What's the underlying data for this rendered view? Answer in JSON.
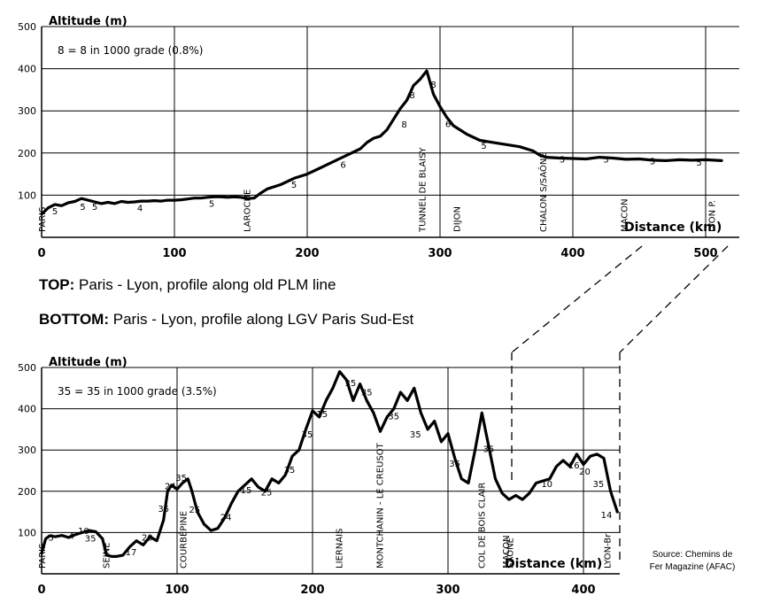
{
  "chart_data": [
    {
      "type": "line",
      "ylabel": "Altitude (m)",
      "xlabel": "Distance (km)",
      "note": "8 = 8 in 1000 grade (0.8%)",
      "xlim": [
        0,
        512
      ],
      "ylim": [
        0,
        500
      ],
      "x_ticks": [
        "0",
        "100",
        "200",
        "300",
        "400",
        "500"
      ],
      "y_ticks": [
        "100",
        "200",
        "300",
        "400",
        "500"
      ],
      "grid": true,
      "series": [
        {
          "x": [
            0,
            5,
            10,
            15,
            20,
            25,
            30,
            35,
            40,
            45,
            50,
            55,
            60,
            65,
            70,
            75,
            80,
            85,
            90,
            95,
            100,
            105,
            110,
            115,
            120,
            125,
            130,
            135,
            140,
            145,
            150,
            155,
            160,
            165,
            170,
            180,
            190,
            200,
            210,
            220,
            230,
            240,
            245,
            250,
            255,
            260,
            265,
            270,
            275,
            280,
            285,
            290,
            295,
            300,
            305,
            310,
            315,
            320,
            330,
            340,
            350,
            360,
            370,
            375,
            380,
            390,
            400,
            410,
            420,
            430,
            440,
            450,
            460,
            470,
            480,
            490,
            500,
            512
          ],
          "y": [
            55,
            70,
            78,
            75,
            82,
            85,
            92,
            88,
            84,
            80,
            83,
            80,
            85,
            83,
            84,
            86,
            86,
            87,
            86,
            88,
            88,
            89,
            91,
            93,
            93,
            95,
            96,
            96,
            95,
            96,
            95,
            92,
            93,
            105,
            115,
            125,
            140,
            150,
            165,
            180,
            195,
            210,
            225,
            235,
            240,
            255,
            280,
            305,
            325,
            360,
            375,
            395,
            340,
            310,
            285,
            265,
            255,
            245,
            230,
            225,
            220,
            215,
            205,
            195,
            190,
            188,
            187,
            186,
            190,
            188,
            185,
            186,
            183,
            182,
            184,
            183,
            184,
            182
          ]
        }
      ],
      "annotations": [
        {
          "label": "PARIS",
          "x": 0
        },
        {
          "label": "LAROCHE",
          "x": 157
        },
        {
          "label": "TUNNEL DE BLAISY",
          "x": 289
        },
        {
          "label": "DIJON",
          "x": 315
        },
        {
          "label": "CHALON S/SAÔNE",
          "x": 380
        },
        {
          "label": "MACON",
          "x": 441
        },
        {
          "label": "LYON P.",
          "x": 507
        }
      ],
      "grade_labels": [
        {
          "label": "5",
          "x": 10,
          "y": 55
        },
        {
          "label": "5",
          "x": 31,
          "y": 65
        },
        {
          "label": "5",
          "x": 40,
          "y": 65
        },
        {
          "label": "4",
          "x": 74,
          "y": 62
        },
        {
          "label": "5",
          "x": 128,
          "y": 72
        },
        {
          "label": "5",
          "x": 190,
          "y": 118
        },
        {
          "label": "6",
          "x": 227,
          "y": 165
        },
        {
          "label": "8",
          "x": 273,
          "y": 260
        },
        {
          "label": "8",
          "x": 279,
          "y": 330
        },
        {
          "label": "8",
          "x": 295,
          "y": 355
        },
        {
          "label": "6",
          "x": 306,
          "y": 262
        },
        {
          "label": "5",
          "x": 333,
          "y": 210
        },
        {
          "label": "5",
          "x": 392,
          "y": 178
        },
        {
          "label": "5",
          "x": 425,
          "y": 178
        },
        {
          "label": "5",
          "x": 460,
          "y": 173
        },
        {
          "label": "5",
          "x": 495,
          "y": 170
        }
      ]
    },
    {
      "type": "line",
      "ylabel": "Altitude (m)",
      "xlabel": "Distance (km)",
      "note": "35 = 35 in 1000 grade (3.5%)",
      "xlim": [
        0,
        425
      ],
      "ylim": [
        0,
        500
      ],
      "x_ticks": [
        "0",
        "100",
        "200",
        "300",
        "400"
      ],
      "y_ticks": [
        "100",
        "200",
        "300",
        "400",
        "500"
      ],
      "grid": true,
      "series": [
        {
          "x": [
            0,
            3,
            6,
            10,
            15,
            20,
            25,
            30,
            35,
            40,
            45,
            48,
            52,
            55,
            60,
            65,
            70,
            75,
            80,
            85,
            90,
            93,
            96,
            100,
            104,
            108,
            111,
            115,
            120,
            125,
            130,
            135,
            140,
            145,
            150,
            155,
            160,
            165,
            170,
            175,
            180,
            185,
            190,
            195,
            200,
            205,
            210,
            215,
            220,
            225,
            230,
            235,
            240,
            245,
            250,
            255,
            260,
            265,
            270,
            275,
            280,
            285,
            290,
            295,
            300,
            305,
            310,
            315,
            320,
            325,
            330,
            335,
            340,
            345,
            350,
            355,
            360,
            365,
            370,
            375,
            380,
            385,
            390,
            395,
            400,
            405,
            410,
            415,
            420,
            425
          ],
          "y": [
            50,
            85,
            92,
            90,
            93,
            88,
            95,
            100,
            105,
            102,
            85,
            45,
            42,
            42,
            45,
            65,
            80,
            70,
            90,
            80,
            130,
            200,
            215,
            205,
            220,
            230,
            200,
            150,
            120,
            105,
            110,
            135,
            170,
            200,
            215,
            230,
            210,
            200,
            230,
            220,
            240,
            285,
            300,
            350,
            395,
            380,
            420,
            450,
            490,
            470,
            420,
            460,
            420,
            390,
            345,
            380,
            400,
            440,
            420,
            450,
            390,
            350,
            370,
            320,
            340,
            280,
            230,
            220,
            300,
            390,
            310,
            230,
            195,
            180,
            190,
            180,
            195,
            220,
            225,
            230,
            260,
            275,
            260,
            290,
            265,
            285,
            290,
            280,
            200,
            150
          ]
        }
      ],
      "annotations": [
        {
          "label": "PARIS",
          "x": 0
        },
        {
          "label": "SEINE",
          "x": 50
        },
        {
          "label": "COURBÉPINE",
          "x": 107
        },
        {
          "label": "LIERNAIS",
          "x": 222
        },
        {
          "label": "MONTCHANIN - LE CREUSOT",
          "x": 252
        },
        {
          "label": "COL DE BOIS CLAIR",
          "x": 327
        },
        {
          "label": "SAÔNE",
          "x": 348
        },
        {
          "label": "MACON",
          "x": 345
        },
        {
          "label": "LYON-Br",
          "x": 420
        }
      ],
      "grade_labels": [
        {
          "label": "5",
          "x": 7,
          "y": 80
        },
        {
          "label": "4",
          "x": 22,
          "y": 85
        },
        {
          "label": "10",
          "x": 31,
          "y": 97
        },
        {
          "label": "35",
          "x": 36,
          "y": 78
        },
        {
          "label": "17",
          "x": 66,
          "y": 45
        },
        {
          "label": "20",
          "x": 78,
          "y": 80
        },
        {
          "label": "35",
          "x": 90,
          "y": 150
        },
        {
          "label": "24",
          "x": 95,
          "y": 205
        },
        {
          "label": "35",
          "x": 103,
          "y": 225
        },
        {
          "label": "25",
          "x": 113,
          "y": 148
        },
        {
          "label": "24",
          "x": 136,
          "y": 130
        },
        {
          "label": "15",
          "x": 151,
          "y": 195
        },
        {
          "label": "25",
          "x": 166,
          "y": 190
        },
        {
          "label": "35",
          "x": 183,
          "y": 245
        },
        {
          "label": "35",
          "x": 196,
          "y": 330
        },
        {
          "label": "15",
          "x": 207,
          "y": 380
        },
        {
          "label": "35",
          "x": 228,
          "y": 455
        },
        {
          "label": "35",
          "x": 240,
          "y": 432
        },
        {
          "label": "35",
          "x": 260,
          "y": 375
        },
        {
          "label": "35",
          "x": 276,
          "y": 330
        },
        {
          "label": "35",
          "x": 305,
          "y": 260
        },
        {
          "label": "35",
          "x": 330,
          "y": 295
        },
        {
          "label": "10",
          "x": 373,
          "y": 210
        },
        {
          "label": "16",
          "x": 393,
          "y": 255
        },
        {
          "label": "20",
          "x": 401,
          "y": 240
        },
        {
          "label": "35",
          "x": 411,
          "y": 210
        },
        {
          "label": "14",
          "x": 417,
          "y": 135
        }
      ]
    }
  ],
  "captions": {
    "top_label": "TOP:",
    "top_text": " Paris - Lyon, profile along old PLM line",
    "bottom_label": "BOTTOM:",
    "bottom_text": " Paris - Lyon, profile along LGV Paris Sud-Est"
  },
  "source_line1": "Source: Chemins de",
  "source_line2": "Fer Magazine (AFAC)"
}
